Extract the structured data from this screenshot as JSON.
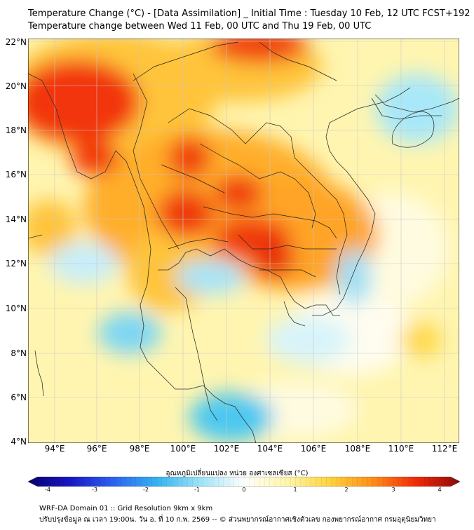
{
  "header": {
    "title_line1": "Temperature Change (°C) - [Data Assimilation] _ Initial Time : Tuesday 10 Feb, 12 UTC FCST+192",
    "title_line2": "Temperature change between Wed 11 Feb, 00 UTC and Thu 19 Feb, 00 UTC"
  },
  "map": {
    "lat_labels": [
      "22°N",
      "20°N",
      "18°N",
      "16°N",
      "14°N",
      "12°N",
      "10°N",
      "8°N",
      "6°N",
      "4°N"
    ],
    "lon_labels": [
      "94°E",
      "96°E",
      "98°E",
      "100°E",
      "102°E",
      "104°E",
      "106°E",
      "108°E",
      "110°E",
      "112°E"
    ]
  },
  "colorbar": {
    "label": "อุณหภูมิเปลี่ยนแปลง หน่วย องศาเซลเซียส (°C)",
    "ticks": [
      "-4",
      "-3",
      "-2",
      "-1",
      "0",
      "1",
      "2",
      "3",
      "4"
    ],
    "range": [
      -4,
      4
    ],
    "colors": [
      "#08006e",
      "#1818c8",
      "#2e64f0",
      "#36b4f0",
      "#9ee4f8",
      "#ffffff",
      "#fff6a8",
      "#ffd23c",
      "#ff8c18",
      "#f0280a",
      "#8c0a0a"
    ]
  },
  "footer": {
    "line1": "WRF-DA Domain 01 :: Grid Resolution 9km x 9km",
    "line2": "ปรับปรุงข้อมูล ณ เวลา 19:00น. วัน อ. ที่ 10 ก.พ. 2569 -- © ส่วนพยากรณ์อากาศเชิงตัวเลข กองพยากรณ์อากาศ กรมอุตุนิยมวิทยา"
  }
}
